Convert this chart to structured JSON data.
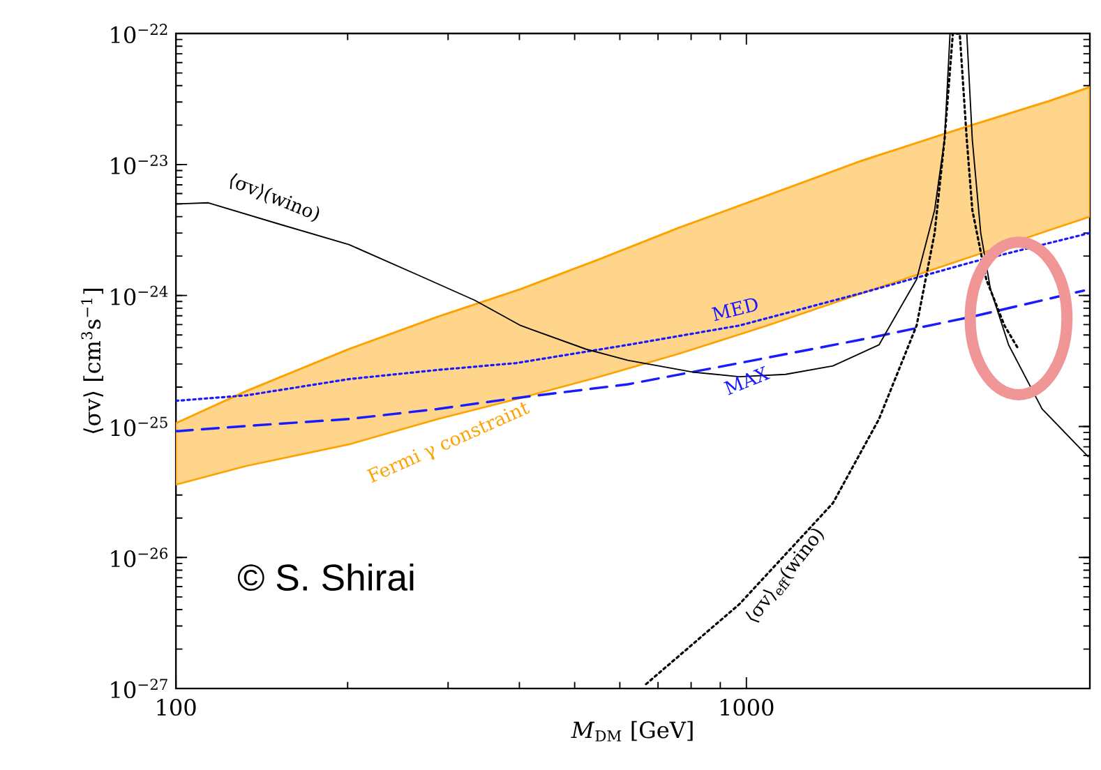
{
  "chart_data": {
    "type": "line",
    "xlabel": "*M*$_{DM}$ [GeV]",
    "ylabel": "⟨σv⟩ [cm$^{3}$s$^{−1}$]",
    "log": "xy",
    "xlim": [
      100,
      4000
    ],
    "ylim": [
      1e-27,
      1e-22
    ],
    "xticks": [
      100,
      1000
    ],
    "yticks": [
      {
        "value": 1e-27,
        "label": "10$^{−27}$"
      },
      {
        "value": 1e-26,
        "label": "10$^{−26}$"
      },
      {
        "value": 1e-25,
        "label": "10$^{−25}$"
      },
      {
        "value": 1e-24,
        "label": "10$^{−24}$"
      },
      {
        "value": 1e-23,
        "label": "10$^{−23}$"
      },
      {
        "value": 1e-22,
        "label": "10$^{−22}$"
      }
    ],
    "series": [
      {
        "name": "Fermi  γ constraint",
        "color": "#ffa200",
        "x": [
          100,
          133,
          201,
          288,
          402,
          554,
          763,
          1088,
          1594,
          2393,
          3432,
          4000
        ],
        "lower": [
          3.6e-26,
          5e-26,
          7.3e-26,
          1.14e-25,
          1.65e-25,
          2.4e-25,
          3.6e-25,
          5.9e-25,
          1.04e-24,
          1.88e-24,
          3.2e-24,
          4e-24
        ],
        "upper": [
          1.06e-25,
          1.87e-25,
          3.9e-25,
          6.9e-25,
          1.12e-24,
          1.9e-24,
          3.3e-24,
          5.8e-24,
          1.07e-23,
          1.9e-23,
          3.1e-23,
          3.9e-23
        ],
        "values": [
          1.06e-25,
          1.87e-25,
          3.9e-25,
          6.9e-25,
          1.12e-24,
          1.9e-24,
          3.3e-24,
          5.8e-24,
          1.07e-23,
          1.9e-23,
          3.1e-23,
          3.9e-23
        ]
      },
      {
        "name": "MED",
        "color": "#1a1aff",
        "line_style": "dotted",
        "x": [
          100,
          133,
          201,
          287,
          395,
          620,
          972,
          1587,
          2489,
          4000
        ],
        "values": [
          1.57e-25,
          1.73e-25,
          2.3e-25,
          2.7e-25,
          3.05e-25,
          4.2e-25,
          5.9e-25,
          1.04e-24,
          1.8e-24,
          3e-24
        ]
      },
      {
        "name": "MAX",
        "color": "#1a1aff",
        "line_style": "dashed",
        "x": [
          100,
          133,
          201,
          287,
          395,
          620,
          972,
          1587,
          2489,
          3906
        ],
        "values": [
          9.2e-26,
          1.01e-25,
          1.14e-25,
          1.36e-25,
          1.65e-25,
          2.1e-25,
          3.05e-25,
          4.6e-25,
          6.9e-25,
          1.09e-24
        ]
      },
      {
        "name": "⟨σv⟩(wino)",
        "color": "#000000",
        "line_style": "solid",
        "x": [
          100,
          114,
          152,
          201,
          266,
          334,
          402,
          523,
          620,
          807,
          972,
          1171,
          1418,
          1708,
          1988,
          2138,
          2225,
          2275,
          2434,
          2489,
          2575,
          2678,
          2882,
          3299,
          3972
        ],
        "values": [
          5e-24,
          5.1e-24,
          3.5e-24,
          2.45e-24,
          1.43e-24,
          9.2e-25,
          5.9e-25,
          3.9e-25,
          3.2e-25,
          2.6e-25,
          2.4e-25,
          2.5e-25,
          2.9e-25,
          4.2e-25,
          1.33e-24,
          4.5e-24,
          1.55e-23,
          1e-22,
          1e-22,
          1.55e-23,
          3e-24,
          1.12e-24,
          4.2e-25,
          1.36e-25,
          5.9e-26
        ]
      },
      {
        "name": "⟨σv⟩$_{eff}$(wino)",
        "color": "#000000",
        "line_style": "dotted",
        "x": [
          667,
          972,
          1418,
          1708,
          1988,
          2138,
          2225,
          2301,
          2366,
          2434,
          2489,
          2633,
          2834,
          2998
        ],
        "values": [
          1.08e-27,
          4.4e-27,
          2.6e-26,
          1.14e-25,
          5.9e-25,
          3e-24,
          1.55e-23,
          1e-22,
          1e-22,
          1.55e-23,
          4.5e-24,
          1.33e-24,
          5.9e-25,
          3.9e-25
        ]
      }
    ],
    "annotations": [
      "© S. Shirai"
    ]
  }
}
